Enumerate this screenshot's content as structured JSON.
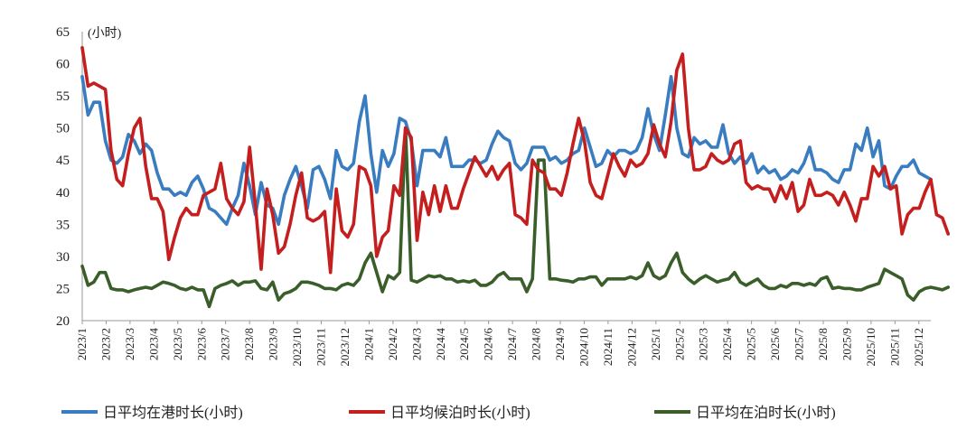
{
  "chart_data": {
    "type": "line",
    "unit_label": "(小时)",
    "ylim": [
      20,
      65
    ],
    "yticks": [
      20,
      25,
      30,
      35,
      40,
      45,
      50,
      55,
      60,
      65
    ],
    "grid": false,
    "legend_position": "bottom",
    "xticks": [
      "2023/1",
      "2023/2",
      "2023/3",
      "2023/4",
      "2023/5",
      "2023/6",
      "2023/7",
      "2023/8",
      "2023/9",
      "2023/10",
      "2023/11",
      "2023/12",
      "2024/1",
      "2024/2",
      "2024/3",
      "2024/4",
      "2024/5",
      "2024/6",
      "2024/7",
      "2024/8",
      "2024/9",
      "2024/10",
      "2024/11",
      "2024/12",
      "2025/1",
      "2025/2",
      "2025/3",
      "2025/4",
      "2025/5",
      "2025/6",
      "2025/7",
      "2025/8",
      "2025/9",
      "2025/10",
      "2025/11",
      "2025/12"
    ],
    "x_start": "2023/1",
    "x_step": "week",
    "series": [
      {
        "name": "日平均在港时长(小时)",
        "color": "#3a7cc0",
        "values": [
          58,
          52,
          54,
          54,
          48,
          45,
          44.5,
          45.5,
          49,
          48,
          46,
          47.5,
          46.5,
          43,
          40.5,
          40.5,
          39.5,
          40,
          39.5,
          41.5,
          42.5,
          40.5,
          37.5,
          37,
          36,
          35,
          37.5,
          39.5,
          44.5,
          41,
          36.5,
          41.5,
          38,
          37.5,
          35,
          39.5,
          42,
          44,
          41,
          37.5,
          43.5,
          44,
          42,
          39,
          46.5,
          44,
          43.5,
          44.5,
          51,
          55,
          46,
          40,
          46.5,
          44,
          46,
          51.5,
          51,
          48,
          41,
          46.5,
          46.5,
          46.5,
          45.5,
          48.5,
          44,
          44,
          44,
          45,
          45,
          44.5,
          45,
          47.5,
          49.5,
          48.5,
          48,
          44.5,
          43.5,
          44.5,
          47,
          47,
          47,
          45,
          45.5,
          44.5,
          45,
          46,
          46.5,
          50,
          47,
          44,
          44.5,
          46.5,
          45.5,
          46.5,
          46.5,
          46,
          46.5,
          48.5,
          53,
          49,
          46.5,
          52,
          58,
          50,
          46,
          45.5,
          48.5,
          47.5,
          48,
          47,
          47,
          50.5,
          46,
          44.5,
          45.5,
          44.5,
          46,
          43,
          44,
          43,
          43.5,
          42,
          42.5,
          43.5,
          43,
          44.5,
          47,
          43.5,
          43.5,
          43,
          42,
          41.5,
          43.5,
          43.5,
          47.5,
          46.5,
          50,
          45.5,
          48,
          41,
          40.5,
          42.5,
          44,
          44,
          45,
          43,
          42.5,
          42
        ]
      },
      {
        "name": "日平均候泊时长(小时)",
        "color": "#c41e1e",
        "values": [
          62.5,
          56.5,
          57,
          56.5,
          56,
          46.5,
          42,
          41,
          46,
          50,
          51.5,
          44,
          39,
          39,
          37,
          29.5,
          33,
          36,
          37.5,
          36.5,
          36.5,
          39.5,
          40,
          40.5,
          44.5,
          39,
          37.5,
          36.5,
          38.5,
          47,
          38,
          28,
          40.5,
          36.5,
          30.5,
          31.5,
          35,
          39.5,
          43,
          36,
          35.5,
          36,
          37,
          27.5,
          40.5,
          34,
          33,
          35,
          44,
          43.5,
          41,
          30,
          33,
          34,
          41,
          39.5,
          50,
          48.5,
          32.5,
          40,
          36.5,
          41,
          37,
          41,
          37.5,
          37.5,
          40.5,
          43,
          45.5,
          44,
          42.5,
          44,
          42,
          43.5,
          44.5,
          36.5,
          36,
          35,
          45,
          43.5,
          43,
          40.5,
          40.5,
          39.5,
          43,
          47.5,
          51.5,
          48,
          41.5,
          39.5,
          39,
          42.5,
          46,
          44,
          42.5,
          45,
          44,
          44.5,
          46,
          50.5,
          47.5,
          45.5,
          51,
          59,
          61.5,
          50,
          43.5,
          43.5,
          44,
          46,
          45,
          44.5,
          45,
          47.5,
          48,
          41.5,
          40.5,
          41,
          40.5,
          40.5,
          38.5,
          41,
          39,
          41.5,
          37,
          38,
          42,
          39.5,
          39.5,
          40,
          39.5,
          38,
          40,
          38,
          35.5,
          39,
          39,
          44,
          42.5,
          44,
          40.5,
          41,
          33.5,
          36.5,
          37.5,
          37.5,
          40,
          42,
          36.5,
          36,
          33.5
        ]
      },
      {
        "name": "日平均在泊时长(小时)",
        "color": "#3a5e2a",
        "values": [
          28.5,
          25.5,
          26,
          27.5,
          27.5,
          25,
          24.8,
          24.8,
          24.5,
          24.8,
          25,
          25.2,
          25,
          25.5,
          26,
          25.8,
          25.5,
          25,
          24.8,
          25.2,
          24.8,
          24.8,
          22.2,
          25,
          25.5,
          25.8,
          26.2,
          25.5,
          26,
          26,
          26.2,
          25,
          24.8,
          26,
          23.2,
          24.2,
          24.5,
          25,
          26,
          26,
          25.8,
          25.5,
          25,
          25,
          24.8,
          25.5,
          25.8,
          25.5,
          26.5,
          29,
          30.5,
          27.5,
          24.5,
          27,
          26.5,
          27.5,
          50,
          26.3,
          26,
          26.5,
          27,
          26.8,
          27,
          26.5,
          26.5,
          26,
          26.2,
          26,
          26.3,
          25.5,
          25.5,
          26,
          27,
          27.5,
          26.5,
          26.5,
          26.5,
          24.5,
          26.5,
          45,
          45,
          26.5,
          26.5,
          26.3,
          26.2,
          26,
          26.5,
          26.5,
          26.8,
          26.8,
          25.5,
          26.5,
          26.5,
          26.5,
          26.5,
          26.8,
          26.5,
          27,
          29,
          27,
          26.5,
          27,
          29,
          30.5,
          27.5,
          26.5,
          25.8,
          26.5,
          27,
          26.5,
          26,
          26.3,
          26.5,
          27.5,
          26,
          25.5,
          26,
          26.5,
          25.5,
          25,
          25,
          25.5,
          25.2,
          25.8,
          25.8,
          25.5,
          25.8,
          25.5,
          26.5,
          26.8,
          25,
          25.2,
          25,
          25,
          24.8,
          24.8,
          25.2,
          25.5,
          25.8,
          28,
          27.5,
          27,
          26.5,
          24,
          23.2,
          24.5,
          25,
          25.2,
          25,
          24.8,
          25.2
        ]
      }
    ]
  }
}
